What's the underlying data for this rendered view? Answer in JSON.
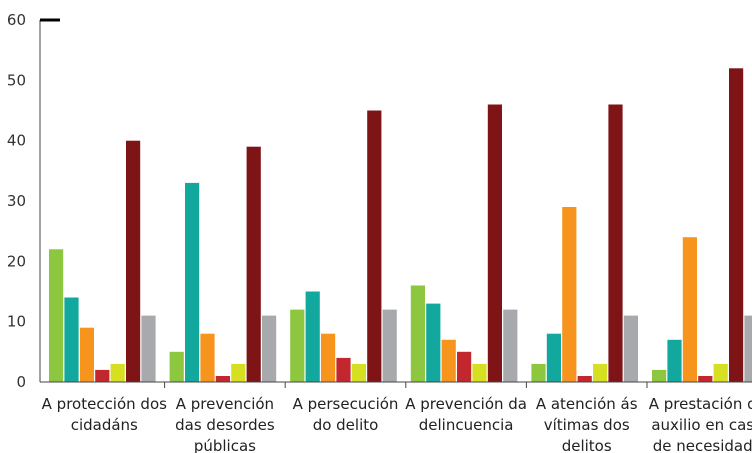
{
  "chart_data": {
    "type": "bar",
    "title": "",
    "xlabel": "",
    "ylabel": "",
    "ylim": [
      0,
      60
    ],
    "yticks": [
      0,
      10,
      20,
      30,
      40,
      50,
      60
    ],
    "grid": false,
    "legend": "none",
    "categories": [
      [
        "A protección dos",
        "cidadáns"
      ],
      [
        "A prevención",
        "das desordes",
        "públicas"
      ],
      [
        "A persecución",
        "do delito"
      ],
      [
        "A prevención da",
        "delincuencia"
      ],
      [
        "A atención ás",
        "vítimas dos",
        "delitos"
      ],
      [
        "A prestación de",
        "auxilio en caso",
        "de necesidade"
      ]
    ],
    "series": [
      {
        "color": "#8dc63f",
        "values": [
          22,
          5,
          12,
          16,
          3,
          2
        ]
      },
      {
        "color": "#13a89e",
        "values": [
          14,
          33,
          15,
          13,
          8,
          7
        ]
      },
      {
        "color": "#f7941d",
        "values": [
          9,
          8,
          8,
          7,
          29,
          24
        ]
      },
      {
        "color": "#c1272d",
        "values": [
          2,
          1,
          4,
          5,
          1,
          1
        ]
      },
      {
        "color": "#d7df23",
        "values": [
          3,
          3,
          3,
          3,
          3,
          3
        ]
      },
      {
        "color": "#7f1416",
        "values": [
          40,
          39,
          45,
          46,
          46,
          52
        ]
      },
      {
        "color": "#a7a9ac",
        "values": [
          11,
          11,
          12,
          12,
          11,
          11
        ]
      }
    ]
  }
}
